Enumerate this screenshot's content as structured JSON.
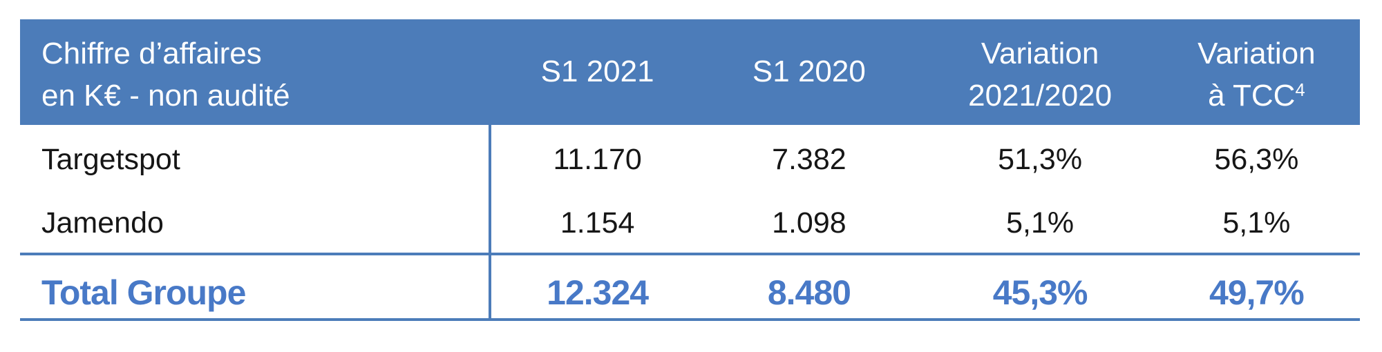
{
  "table": {
    "header": {
      "col1_line1": "Chiffre d’affaires",
      "col1_line2": "en K€ - non audité",
      "col2": "S1 2021",
      "col3": "S1 2020",
      "col4_line1": "Variation",
      "col4_line2": "2021/2020",
      "col5_line1": "Variation",
      "col5_line2": "à TCC",
      "col5_sup": "4"
    },
    "rows": [
      {
        "label": "Targetspot",
        "s1_2021": "11.170",
        "s1_2020": "7.382",
        "variation": "51,3%",
        "variation_tcc": "56,3%"
      },
      {
        "label": "Jamendo",
        "s1_2021": "1.154",
        "s1_2020": "1.098",
        "variation": "5,1%",
        "variation_tcc": "5,1%"
      }
    ],
    "total": {
      "label": "Total Groupe",
      "s1_2021": "12.324",
      "s1_2020": "8.480",
      "variation": "45,3%",
      "variation_tcc": "49,7%"
    }
  },
  "colors": {
    "header_bg": "#4C7CB9",
    "header_text": "#FFFFFF",
    "line": "#4C7CB9",
    "body_text": "#161616",
    "total_text": "#4879C7"
  }
}
